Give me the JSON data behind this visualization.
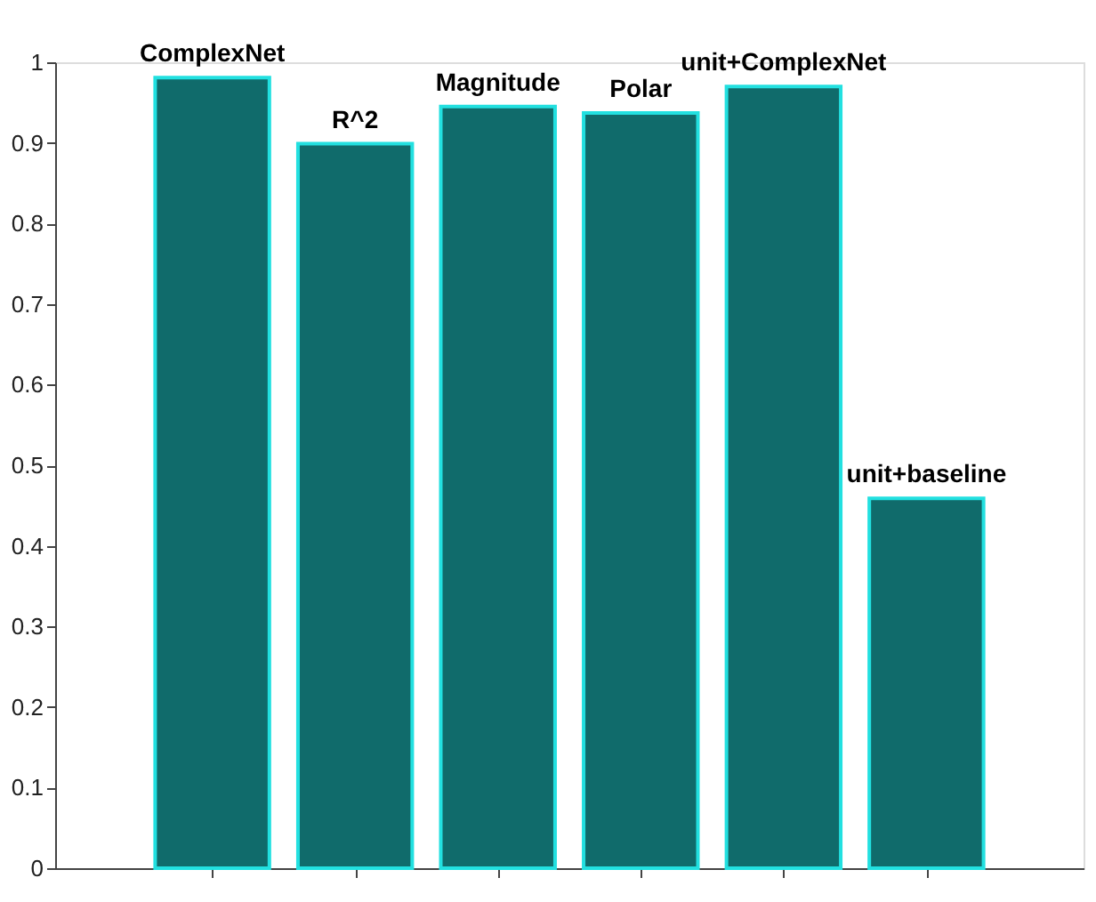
{
  "chart_data": {
    "type": "bar",
    "categories": [
      "ComplexNet",
      "R^2",
      "Magnitude",
      "Polar",
      "unit+ComplexNet",
      "unit+baseline"
    ],
    "values": [
      0.981,
      0.899,
      0.945,
      0.937,
      0.97,
      0.459
    ],
    "color": "#106b6b",
    "ylim": [
      0,
      1
    ],
    "yticks": [
      0,
      0.1,
      0.2,
      0.3,
      0.4,
      0.5,
      0.6,
      0.7,
      0.8,
      0.9,
      1
    ],
    "grid": false,
    "tick_labels": "y"
  }
}
